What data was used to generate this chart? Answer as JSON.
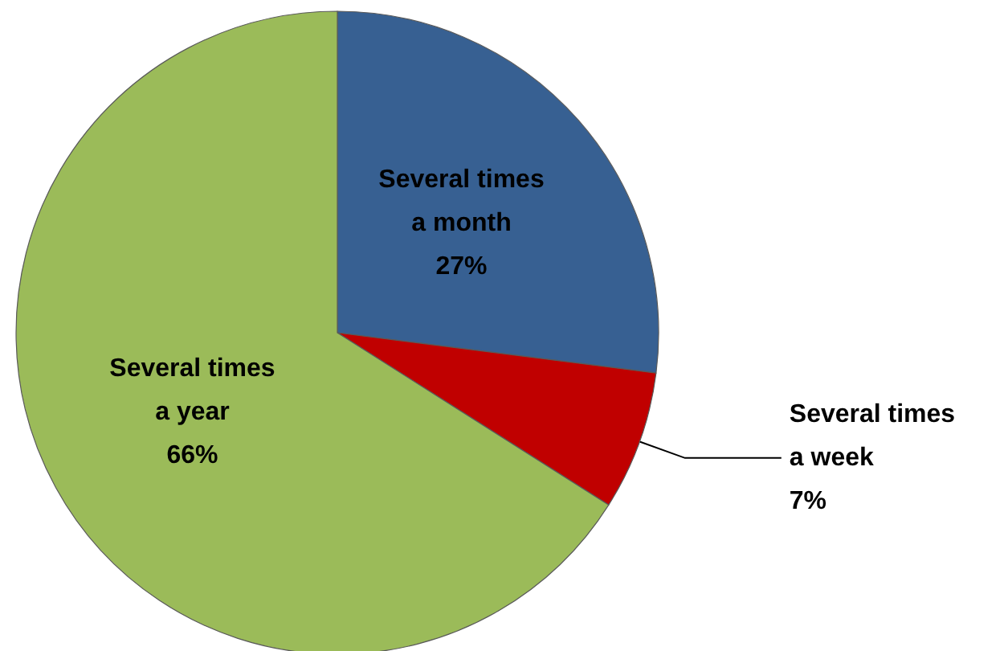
{
  "chart_data": {
    "type": "pie",
    "categories": [
      "Several times\na month",
      "Several times\na week",
      "Several times\na year"
    ],
    "values": [
      27,
      7,
      66
    ],
    "colors": [
      "#376092",
      "#c00000",
      "#9bbb59"
    ],
    "value_labels": [
      "27%",
      "7%",
      "66%"
    ],
    "legend": false
  }
}
